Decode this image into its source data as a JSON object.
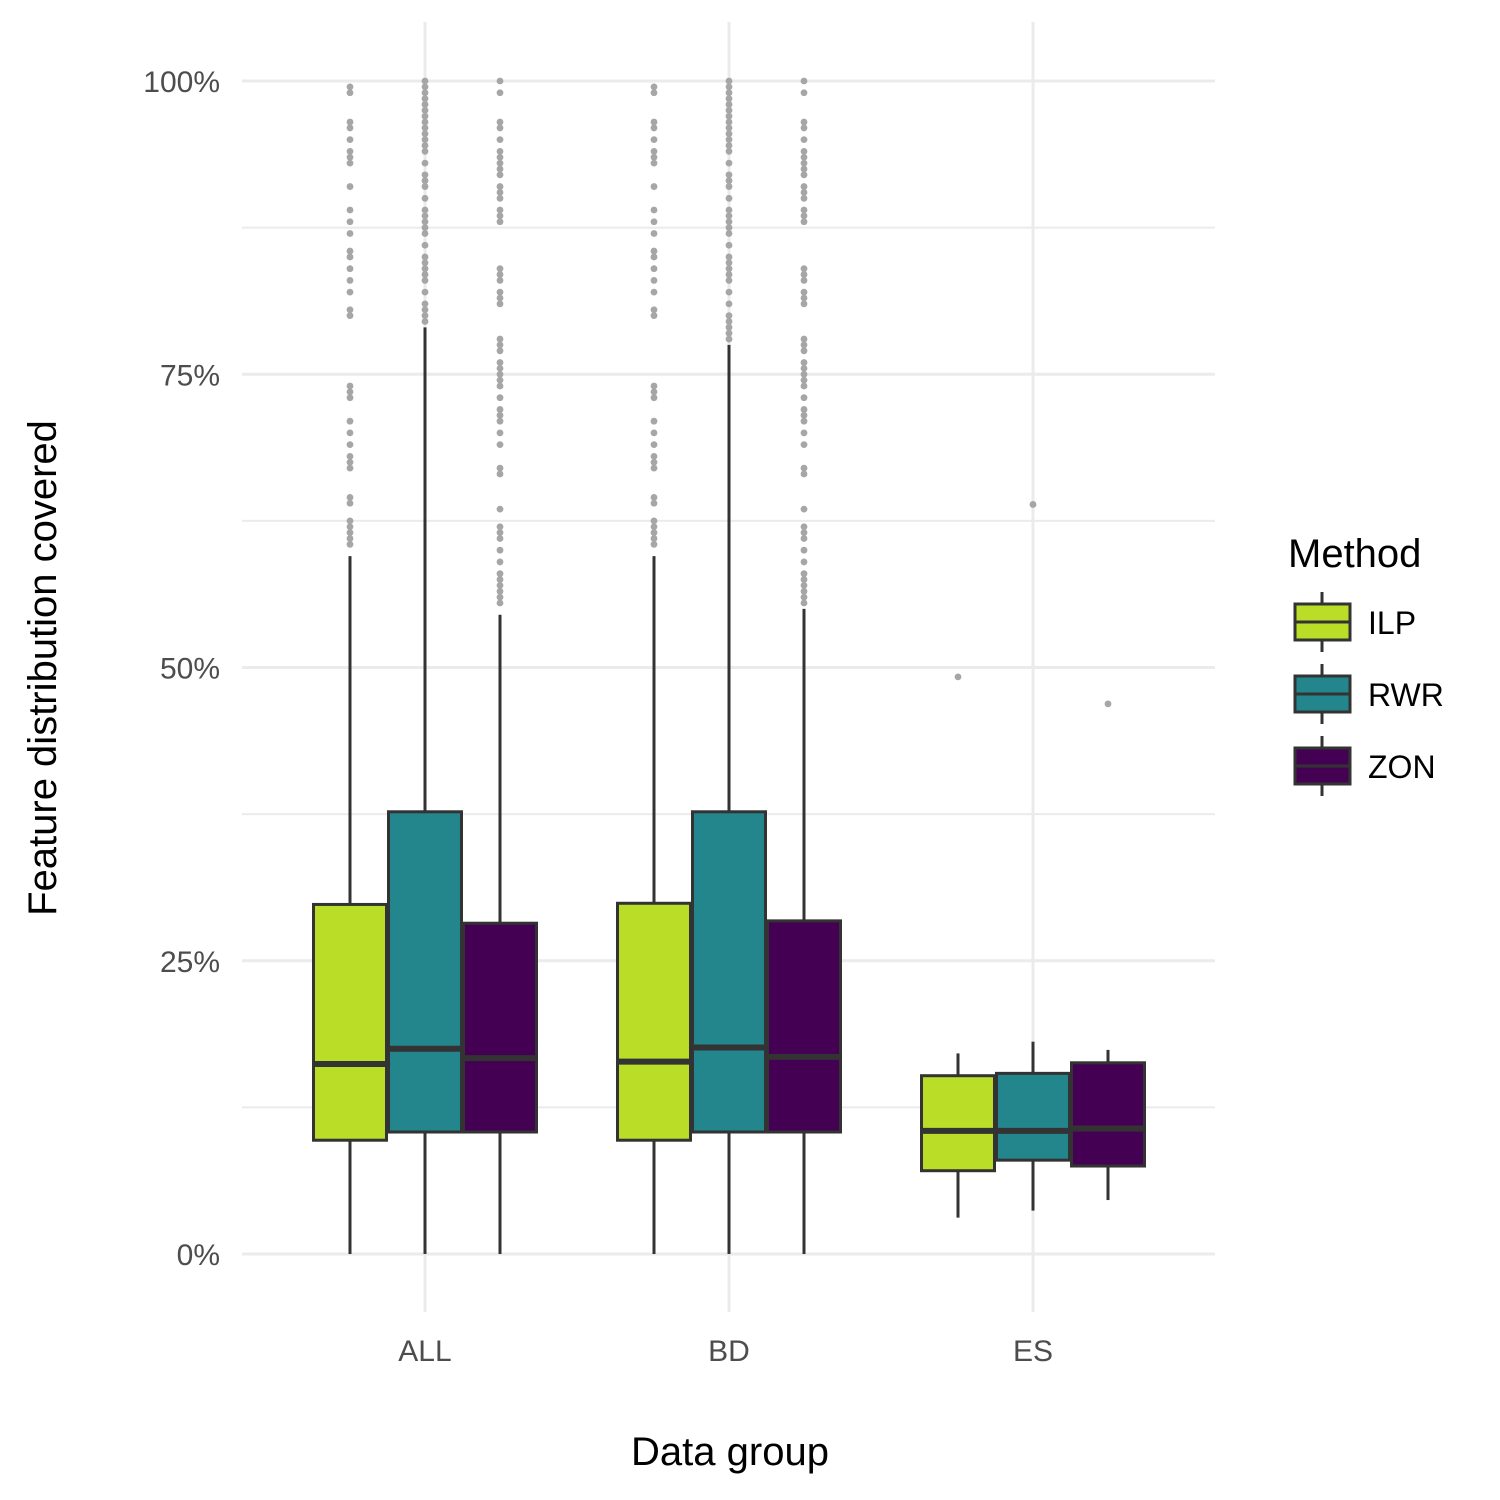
{
  "chart_data": {
    "type": "box",
    "xlabel": "Data group",
    "ylabel": "Feature distribution covered",
    "ylim": [
      -0.05,
      1.05
    ],
    "y_ticks": [
      {
        "value": 0,
        "label": "0%"
      },
      {
        "value": 0.25,
        "label": "25%"
      },
      {
        "value": 0.5,
        "label": "50%"
      },
      {
        "value": 0.75,
        "label": "75%"
      },
      {
        "value": 1,
        "label": "100%"
      }
    ],
    "minor_grid": [
      0.125,
      0.375,
      0.625,
      0.875
    ],
    "grid": true,
    "legend_position": "right",
    "legend_title": "Method",
    "categories": [
      "ALL",
      "BD",
      "ES"
    ],
    "series": [
      {
        "name": "ILP",
        "color": "#bade28",
        "boxes": [
          {
            "min": 0.0,
            "q1": 0.097,
            "median": 0.162,
            "q3": 0.298,
            "max": 0.595,
            "outliers": [
              0.605,
              0.61,
              0.615,
              0.62,
              0.625,
              0.64,
              0.645,
              0.67,
              0.675,
              0.68,
              0.69,
              0.7,
              0.71,
              0.73,
              0.735,
              0.74,
              0.8,
              0.805,
              0.82,
              0.83,
              0.84,
              0.85,
              0.855,
              0.87,
              0.88,
              0.89,
              0.91,
              0.93,
              0.935,
              0.94,
              0.95,
              0.96,
              0.965,
              0.99,
              0.995
            ]
          },
          {
            "min": 0.0,
            "q1": 0.097,
            "median": 0.164,
            "q3": 0.299,
            "max": 0.595,
            "outliers": [
              0.605,
              0.61,
              0.615,
              0.62,
              0.625,
              0.64,
              0.645,
              0.67,
              0.675,
              0.68,
              0.69,
              0.7,
              0.71,
              0.73,
              0.735,
              0.74,
              0.8,
              0.805,
              0.82,
              0.83,
              0.84,
              0.85,
              0.855,
              0.87,
              0.88,
              0.89,
              0.91,
              0.93,
              0.935,
              0.94,
              0.95,
              0.96,
              0.965,
              0.99,
              0.995
            ]
          },
          {
            "min": 0.031,
            "q1": 0.071,
            "median": 0.105,
            "q3": 0.152,
            "max": 0.171,
            "outliers": [
              0.492
            ]
          }
        ]
      },
      {
        "name": "RWR",
        "color": "#23868d",
        "boxes": [
          {
            "min": 0.0,
            "q1": 0.104,
            "median": 0.175,
            "q3": 0.377,
            "max": 0.79,
            "outliers": [
              0.795,
              0.8,
              0.805,
              0.81,
              0.82,
              0.83,
              0.835,
              0.84,
              0.845,
              0.85,
              0.86,
              0.87,
              0.875,
              0.88,
              0.885,
              0.89,
              0.9,
              0.91,
              0.915,
              0.92,
              0.93,
              0.94,
              0.945,
              0.95,
              0.955,
              0.96,
              0.965,
              0.97,
              0.975,
              0.98,
              0.985,
              0.99,
              0.995,
              1.0
            ]
          },
          {
            "min": 0.0,
            "q1": 0.104,
            "median": 0.176,
            "q3": 0.377,
            "max": 0.775,
            "outliers": [
              0.78,
              0.785,
              0.79,
              0.795,
              0.8,
              0.81,
              0.82,
              0.83,
              0.835,
              0.84,
              0.845,
              0.85,
              0.86,
              0.87,
              0.875,
              0.88,
              0.885,
              0.89,
              0.9,
              0.91,
              0.915,
              0.92,
              0.93,
              0.94,
              0.945,
              0.95,
              0.955,
              0.96,
              0.965,
              0.97,
              0.975,
              0.98,
              0.985,
              0.99,
              0.995,
              1.0
            ]
          },
          {
            "min": 0.037,
            "q1": 0.08,
            "median": 0.105,
            "q3": 0.154,
            "max": 0.181,
            "outliers": [
              0.639
            ]
          }
        ]
      },
      {
        "name": "ZON",
        "color": "#440154",
        "boxes": [
          {
            "min": 0.0,
            "q1": 0.104,
            "median": 0.167,
            "q3": 0.282,
            "max": 0.545,
            "outliers": [
              0.555,
              0.56,
              0.565,
              0.57,
              0.575,
              0.58,
              0.59,
              0.6,
              0.61,
              0.615,
              0.62,
              0.635,
              0.665,
              0.67,
              0.69,
              0.7,
              0.71,
              0.715,
              0.72,
              0.73,
              0.74,
              0.745,
              0.75,
              0.755,
              0.76,
              0.77,
              0.775,
              0.78,
              0.81,
              0.815,
              0.82,
              0.83,
              0.835,
              0.84,
              0.88,
              0.885,
              0.89,
              0.9,
              0.905,
              0.91,
              0.92,
              0.925,
              0.93,
              0.935,
              0.94,
              0.95,
              0.96,
              0.965,
              0.99,
              1.0
            ]
          },
          {
            "min": 0.0,
            "q1": 0.104,
            "median": 0.168,
            "q3": 0.284,
            "max": 0.55,
            "outliers": [
              0.555,
              0.56,
              0.565,
              0.57,
              0.575,
              0.58,
              0.59,
              0.6,
              0.61,
              0.615,
              0.62,
              0.635,
              0.665,
              0.67,
              0.69,
              0.7,
              0.71,
              0.715,
              0.72,
              0.73,
              0.74,
              0.745,
              0.75,
              0.755,
              0.76,
              0.77,
              0.775,
              0.78,
              0.81,
              0.815,
              0.82,
              0.83,
              0.835,
              0.84,
              0.88,
              0.885,
              0.89,
              0.9,
              0.905,
              0.91,
              0.92,
              0.925,
              0.93,
              0.935,
              0.94,
              0.95,
              0.96,
              0.965,
              0.99,
              1.0
            ]
          },
          {
            "min": 0.046,
            "q1": 0.075,
            "median": 0.107,
            "q3": 0.163,
            "max": 0.174,
            "outliers": [
              0.469
            ]
          }
        ]
      }
    ]
  }
}
